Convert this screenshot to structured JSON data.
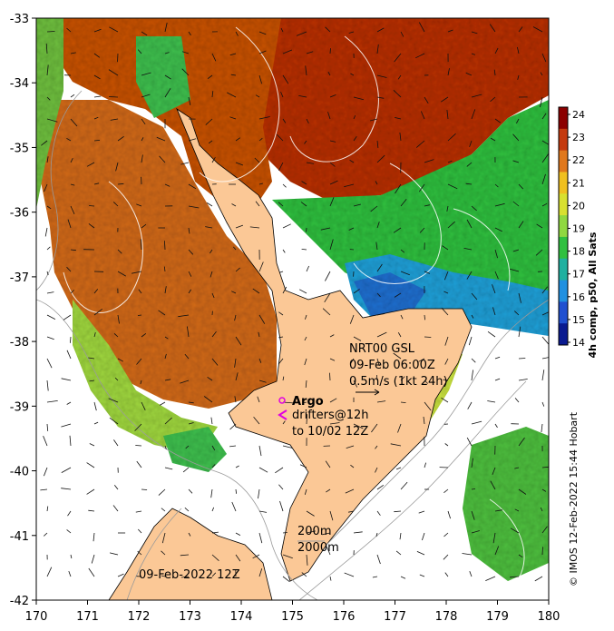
{
  "map": {
    "lon_ticks": [
      "170",
      "171",
      "172",
      "173",
      "174",
      "175",
      "176",
      "177",
      "178",
      "179",
      "180"
    ],
    "lat_ticks": [
      "-33",
      "-34",
      "-35",
      "-36",
      "-37",
      "-38",
      "-39",
      "-40",
      "-41",
      "-42"
    ],
    "lon_range": [
      170,
      180
    ],
    "lat_range": [
      -42,
      -33
    ],
    "colors": {
      "land": "#fbc896",
      "warm_dark": "#b22a08",
      "warm": "#d4551a",
      "orange": "#e08020",
      "yellow": "#e8e020",
      "green": "#40c040",
      "cyan": "#30a0e0",
      "blue": "#2060d0"
    }
  },
  "colorbar": {
    "title": "4h comp, p50, All Sats",
    "labels": [
      "24",
      "23",
      "22",
      "21",
      "20",
      "19",
      "18",
      "17",
      "16",
      "15",
      "14"
    ],
    "colors": [
      "#8b0000",
      "#c43a0e",
      "#e0781c",
      "#f0c020",
      "#d8e030",
      "#90d840",
      "#30c040",
      "#20b0a0",
      "#2090e0",
      "#2050d0",
      "#0a1a90"
    ]
  },
  "annotations": {
    "gsl_line1": "NRT00 GSL",
    "gsl_line2": "09-Feb 06:00Z",
    "gsl_line3": "0.5m/s (1kt 24h)",
    "argo": "Argo",
    "drifters_line1": "drifters@12h",
    "drifters_line2": "to 10/02 12Z",
    "contour_200": "200m",
    "contour_2000": "2000m",
    "date": "09-Feb-2022 12Z"
  },
  "credit": "© IMOS 12-Feb-2022 15:44 Hobart"
}
